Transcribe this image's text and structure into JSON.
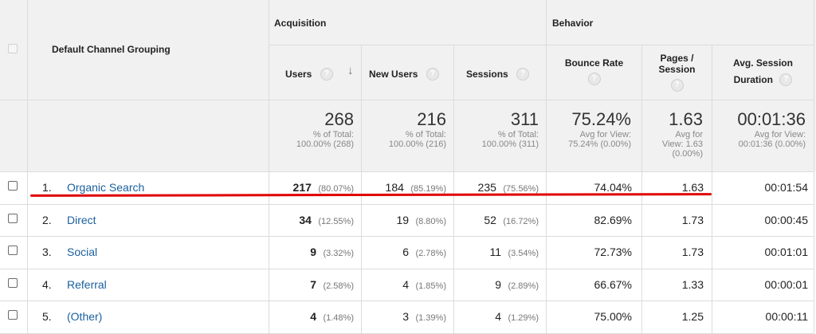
{
  "header": {
    "dimension_label": "Default Channel Grouping",
    "groups": {
      "acquisition": "Acquisition",
      "behavior": "Behavior"
    },
    "columns": {
      "users": "Users",
      "new_users": "New Users",
      "sessions": "Sessions",
      "bounce_rate": "Bounce Rate",
      "pages_session_line1": "Pages /",
      "pages_session_line2": "Session",
      "avg_duration_line1": "Avg. Session",
      "avg_duration_line2": "Duration"
    },
    "help_glyph": "?",
    "sort_glyph": "↓"
  },
  "totals": {
    "users": {
      "value": "268",
      "l1": "% of Total:",
      "l2": "100.00% (268)"
    },
    "new_users": {
      "value": "216",
      "l1": "% of Total:",
      "l2": "100.00% (216)"
    },
    "sessions": {
      "value": "311",
      "l1": "% of Total:",
      "l2": "100.00% (311)"
    },
    "bounce_rate": {
      "value": "75.24%",
      "l1": "Avg for View:",
      "l2": "75.24% (0.00%)"
    },
    "pages_session": {
      "value": "1.63",
      "l1": "Avg for",
      "l2": "View: 1.63",
      "l3": "(0.00%)"
    },
    "avg_duration": {
      "value": "00:01:36",
      "l1": "Avg for View:",
      "l2": "00:01:36 (0.00%)"
    }
  },
  "rows": [
    {
      "index": "1.",
      "channel": "Organic Search",
      "users": "217",
      "users_pct": "(80.07%)",
      "new_users": "184",
      "new_users_pct": "(85.19%)",
      "sessions": "235",
      "sessions_pct": "(75.56%)",
      "bounce_rate": "74.04%",
      "pages_session": "1.63",
      "avg_duration": "00:01:54"
    },
    {
      "index": "2.",
      "channel": "Direct",
      "users": "34",
      "users_pct": "(12.55%)",
      "new_users": "19",
      "new_users_pct": "(8.80%)",
      "sessions": "52",
      "sessions_pct": "(16.72%)",
      "bounce_rate": "82.69%",
      "pages_session": "1.73",
      "avg_duration": "00:00:45"
    },
    {
      "index": "3.",
      "channel": "Social",
      "users": "9",
      "users_pct": "(3.32%)",
      "new_users": "6",
      "new_users_pct": "(2.78%)",
      "sessions": "11",
      "sessions_pct": "(3.54%)",
      "bounce_rate": "72.73%",
      "pages_session": "1.73",
      "avg_duration": "00:01:01"
    },
    {
      "index": "4.",
      "channel": "Referral",
      "users": "7",
      "users_pct": "(2.58%)",
      "new_users": "4",
      "new_users_pct": "(1.85%)",
      "sessions": "9",
      "sessions_pct": "(2.89%)",
      "bounce_rate": "66.67%",
      "pages_session": "1.33",
      "avg_duration": "00:00:01"
    },
    {
      "index": "5.",
      "channel": "(Other)",
      "users": "4",
      "users_pct": "(1.48%)",
      "new_users": "3",
      "new_users_pct": "(1.39%)",
      "sessions": "4",
      "sessions_pct": "(1.29%)",
      "bounce_rate": "75.00%",
      "pages_session": "1.25",
      "avg_duration": "00:00:11"
    }
  ],
  "colors": {
    "link": "#1a5f9e",
    "header_bg": "#f1f1f1",
    "highlight_underline": "#e00000"
  }
}
